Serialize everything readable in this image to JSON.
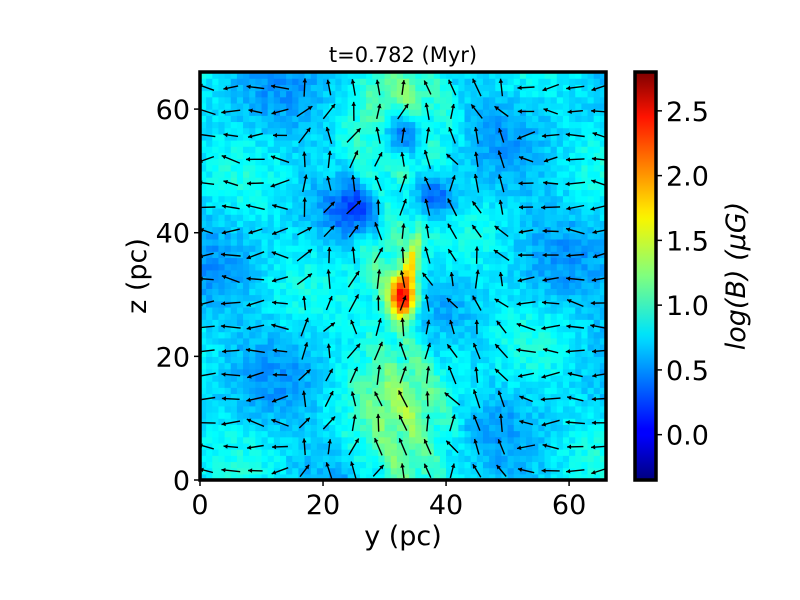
{
  "chart_data": {
    "type": "heatmap",
    "title": "t=0.782 (Myr)",
    "xlabel": "y (pc)",
    "ylabel": "z (pc)",
    "xlim": [
      0,
      66
    ],
    "ylim": [
      0,
      66
    ],
    "x_ticks": [
      0,
      20,
      40,
      60
    ],
    "y_ticks": [
      0,
      20,
      40,
      60
    ],
    "colorbar": {
      "label": "log(B) (μG)",
      "range": [
        -0.35,
        2.8
      ],
      "ticks": [
        0.0,
        0.5,
        1.0,
        1.5,
        2.0,
        2.5
      ],
      "tick_labels": [
        "0.0",
        "0.5",
        "1.0",
        "1.5",
        "2.0",
        "2.5"
      ],
      "colormap": "jet"
    },
    "features": [
      {
        "kind": "background",
        "value": 0.7
      },
      {
        "kind": "filament",
        "x_center": 32,
        "z_range": [
          0,
          66
        ],
        "value": 1.2
      },
      {
        "kind": "low_field_cavity",
        "x": 25,
        "z": 44,
        "value": 0.15
      },
      {
        "kind": "low_field_cavity",
        "x": 38,
        "z": 46,
        "value": 0.3
      },
      {
        "kind": "low_field_cavity",
        "x": 33,
        "z": 56,
        "value": 0.35
      },
      {
        "kind": "peak",
        "x": 33,
        "z": 30,
        "value": 2.7
      }
    ],
    "overlay": {
      "type": "magnetic_field_vectors",
      "color": "#000000"
    }
  },
  "colors": {
    "frame": "#000000",
    "background": "#ffffff"
  }
}
